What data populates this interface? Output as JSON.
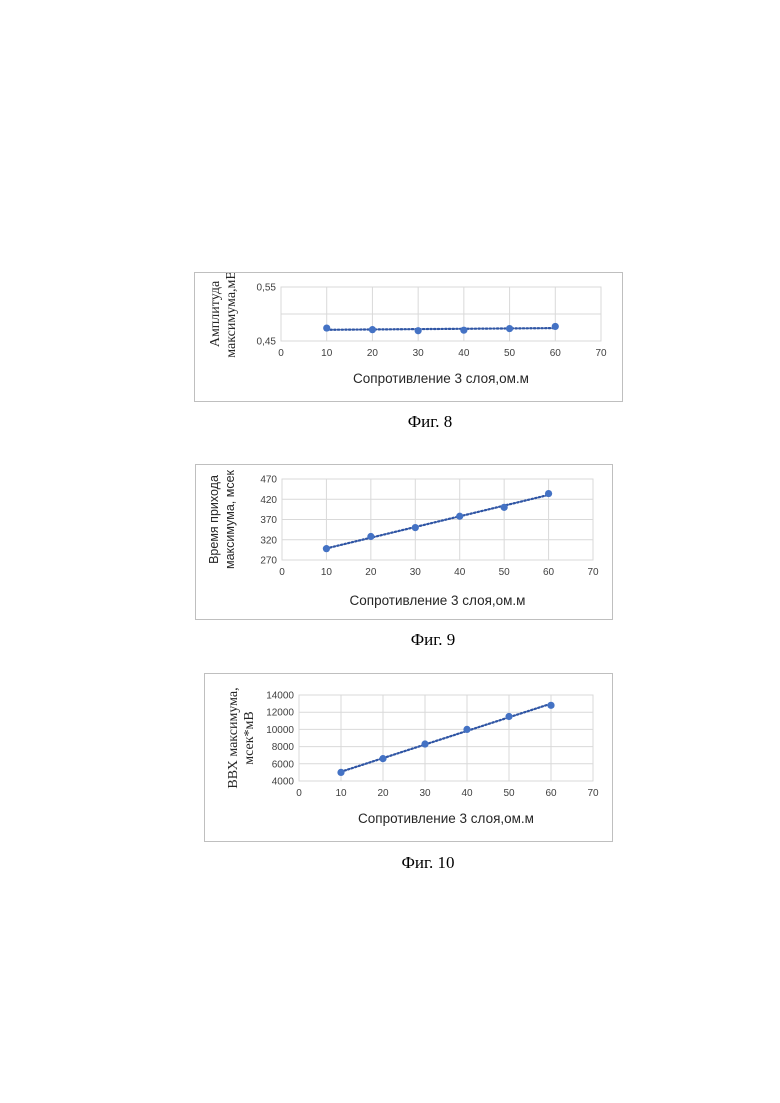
{
  "colors": {
    "series": "#4472c4",
    "trend": "#2f55a4",
    "grid": "#d9d9d9",
    "border": "#bfbfbf"
  },
  "charts": [
    {
      "caption": "Фиг. 8",
      "chart_data": {
        "type": "scatter",
        "title": "",
        "xlabel": "Сопротивление 3 слоя,ом.м",
        "ylabel_lines": [
          "Амплитуда",
          "максимума,мВ"
        ],
        "xlim": [
          0,
          70
        ],
        "ylim": [
          0.45,
          0.55
        ],
        "xticks": [
          0,
          10,
          20,
          30,
          40,
          50,
          60,
          70
        ],
        "yticks": [
          0.45,
          0.55
        ],
        "ytick_labels": [
          "0,45",
          "0,55"
        ],
        "y_gridlines": [
          0.45,
          0.5,
          0.55
        ],
        "x": [
          10,
          20,
          30,
          40,
          50,
          60
        ],
        "y": [
          0.474,
          0.471,
          0.469,
          0.47,
          0.473,
          0.477
        ],
        "trendline": "linear",
        "trendline_range": [
          10,
          60
        ]
      }
    },
    {
      "caption": "Фиг. 9",
      "chart_data": {
        "type": "scatter",
        "title": "",
        "xlabel": "Сопротивление 3 слоя,ом.м",
        "ylabel_lines": [
          "Время прихода",
          "максимума, мсек"
        ],
        "xlim": [
          0,
          70
        ],
        "ylim": [
          270,
          470
        ],
        "xticks": [
          0,
          10,
          20,
          30,
          40,
          50,
          60,
          70
        ],
        "yticks": [
          270,
          320,
          370,
          420,
          470
        ],
        "ytick_labels": [
          "270",
          "320",
          "370",
          "420",
          "470"
        ],
        "y_gridlines": [
          270,
          320,
          370,
          420,
          470
        ],
        "x": [
          10,
          20,
          30,
          40,
          50,
          60
        ],
        "y": [
          298,
          328,
          350,
          378,
          400,
          434
        ],
        "trendline": "linear",
        "trendline_range": [
          10,
          60
        ]
      }
    },
    {
      "caption": "Фиг. 10",
      "chart_data": {
        "type": "scatter",
        "title": "",
        "xlabel": "Сопротивление 3 слоя,ом.м",
        "ylabel_lines": [
          "ВВХ максимума,",
          "мсек*мВ"
        ],
        "xlim": [
          0,
          70
        ],
        "ylim": [
          4000,
          14000
        ],
        "xticks": [
          0,
          10,
          20,
          30,
          40,
          50,
          60,
          70
        ],
        "yticks": [
          4000,
          6000,
          8000,
          10000,
          12000,
          14000
        ],
        "ytick_labels": [
          "4000",
          "6000",
          "8000",
          "10000",
          "12000",
          "14000"
        ],
        "y_gridlines": [
          4000,
          6000,
          8000,
          10000,
          12000,
          14000
        ],
        "x": [
          10,
          20,
          30,
          40,
          50,
          60
        ],
        "y": [
          5000,
          6600,
          8300,
          10000,
          11500,
          12800
        ],
        "trendline": "linear",
        "trendline_range": [
          10,
          60
        ]
      }
    }
  ]
}
